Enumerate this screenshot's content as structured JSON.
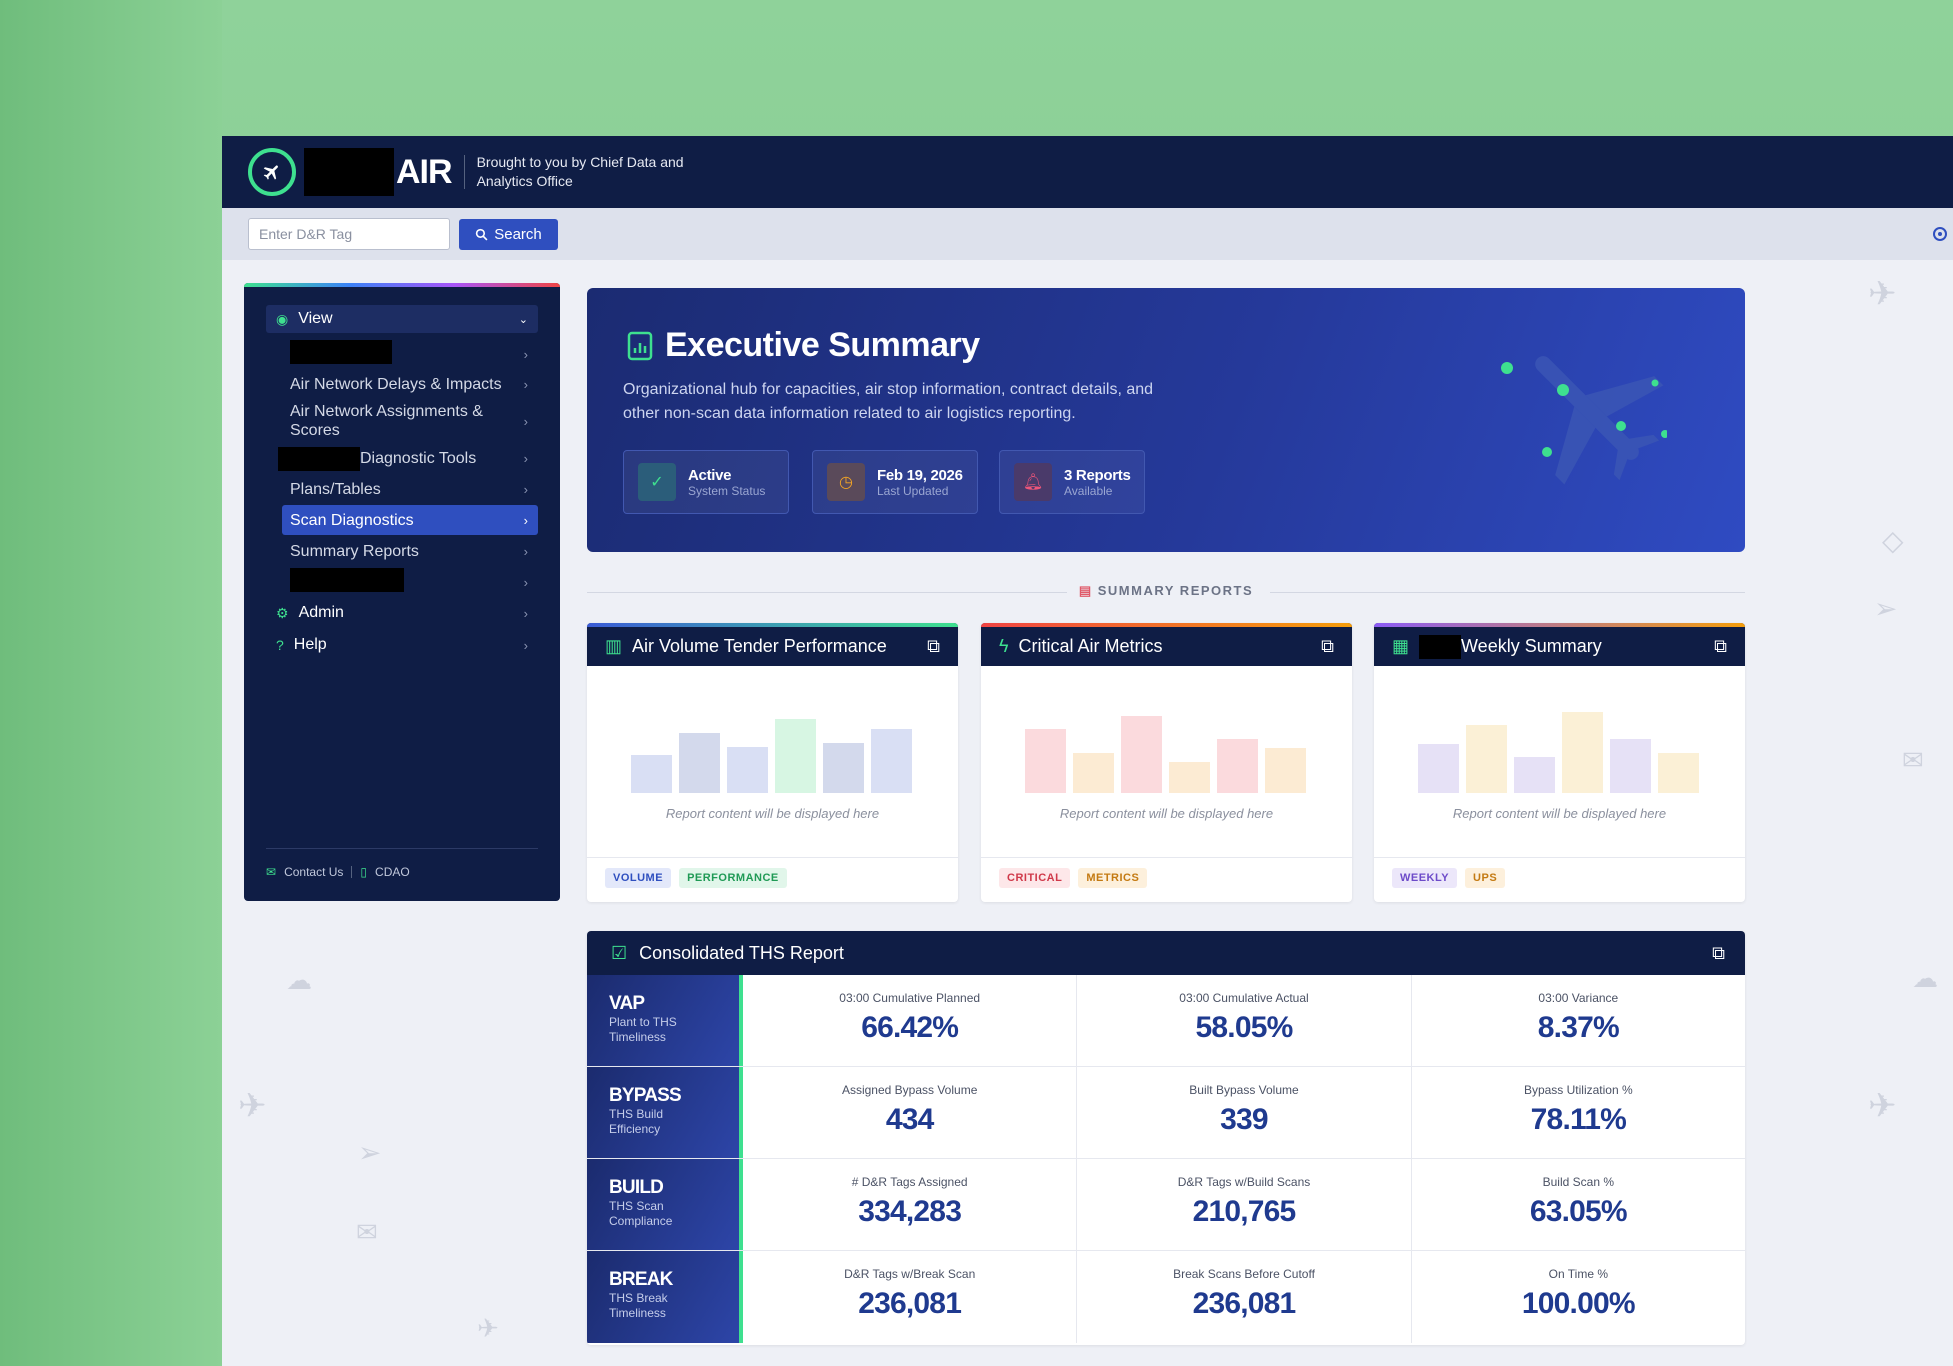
{
  "header": {
    "brand": "AIR",
    "tagline": "Brought to you by Chief Data and Analytics Office"
  },
  "search": {
    "placeholder": "Enter D&R Tag",
    "button_label": "Search"
  },
  "sidebar": {
    "view_label": "View",
    "items": [
      {
        "label": ""
      },
      {
        "label": "Air Network Delays & Impacts"
      },
      {
        "label": "Air Network Assignments & Scores"
      },
      {
        "label": "Diagnostic Tools"
      },
      {
        "label": "Plans/Tables"
      },
      {
        "label": "Scan Diagnostics"
      },
      {
        "label": "Summary Reports"
      },
      {
        "label": ""
      }
    ],
    "admin_label": "Admin",
    "help_label": "Help",
    "footer": {
      "contact": "Contact Us",
      "cdao": "CDAO"
    }
  },
  "hero": {
    "title": "Executive Summary",
    "description": "Organizational hub for capacities, air stop information, contract details, and other non-scan data information related to air logistics reporting.",
    "stats": [
      {
        "main": "Active",
        "sub": "System Status"
      },
      {
        "main": "Feb 19, 2026",
        "sub": "Last Updated"
      },
      {
        "main": "3 Reports",
        "sub": "Available"
      }
    ]
  },
  "summary_section_label": "SUMMARY REPORTS",
  "cards": [
    {
      "title": "Air Volume Tender Performance",
      "placeholder": "Report content will be displayed here",
      "tags": [
        "VOLUME",
        "PERFORMANCE"
      ],
      "accent": "#3ee08f"
    },
    {
      "title": "Critical Air Metrics",
      "placeholder": "Report content will be displayed here",
      "tags": [
        "CRITICAL",
        "METRICS"
      ],
      "accent": "#f59e0b"
    },
    {
      "title": "Weekly Summary",
      "placeholder": "Report content will be displayed here",
      "tags": [
        "WEEKLY",
        "UPS"
      ],
      "accent": "#f59e0b"
    }
  ],
  "ths": {
    "title": "Consolidated THS Report",
    "rows": [
      {
        "name": "VAP",
        "desc": "Plant to THS Timeliness",
        "cells": [
          {
            "label": "03:00 Cumulative Planned",
            "value": "66.42%"
          },
          {
            "label": "03:00 Cumulative Actual",
            "value": "58.05%"
          },
          {
            "label": "03:00 Variance",
            "value": "8.37%"
          }
        ]
      },
      {
        "name": "BYPASS",
        "desc": "THS Build Efficiency",
        "cells": [
          {
            "label": "Assigned Bypass Volume",
            "value": "434"
          },
          {
            "label": "Built Bypass Volume",
            "value": "339"
          },
          {
            "label": "Bypass Utilization %",
            "value": "78.11%"
          }
        ]
      },
      {
        "name": "BUILD",
        "desc": "THS Scan Compliance",
        "cells": [
          {
            "label": "# D&R Tags Assigned",
            "value": "334,283"
          },
          {
            "label": "D&R Tags w/Build Scans",
            "value": "210,765"
          },
          {
            "label": "Build Scan %",
            "value": "63.05%"
          }
        ]
      },
      {
        "name": "BREAK",
        "desc": "THS Break Timeliness",
        "cells": [
          {
            "label": "D&R Tags w/Break Scan",
            "value": "236,081"
          },
          {
            "label": "Break Scans Before Cutoff",
            "value": "236,081"
          },
          {
            "label": "On Time %",
            "value": "100.00%"
          }
        ]
      }
    ]
  },
  "colors": {
    "navy": "#0f1d45",
    "accent_green": "#3ee08f",
    "primary_blue": "#2f4fbf"
  }
}
